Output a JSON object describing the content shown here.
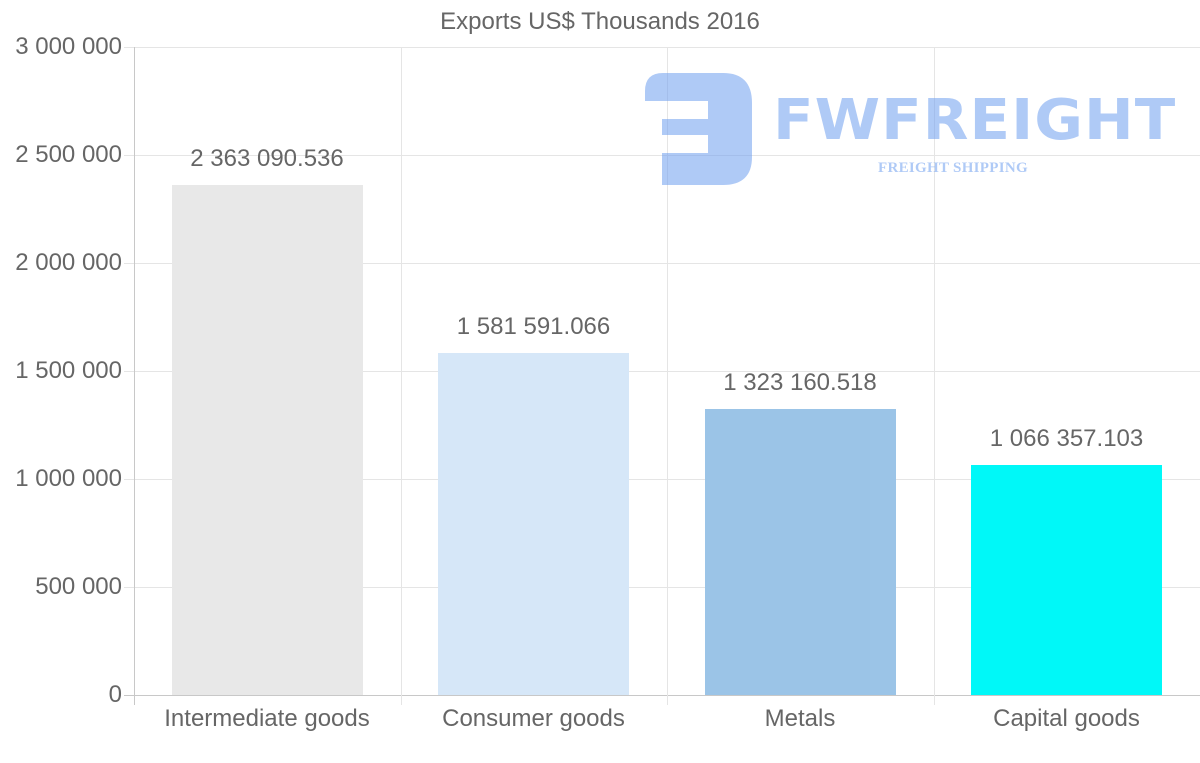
{
  "chart_data": {
    "type": "bar",
    "title": "Exports US$ Thousands 2016",
    "xlabel": "",
    "ylabel": "",
    "categories": [
      "Intermediate goods",
      "Consumer goods",
      "Metals",
      "Capital goods"
    ],
    "values": [
      2363090.536,
      1581591.066,
      1323160.518,
      1066357.103
    ],
    "value_labels": [
      "2 363 090.536",
      "1 581 591.066",
      "1 323 160.518",
      "1 066 357.103"
    ],
    "colors": [
      "#e8e8e8",
      "#d6e7f8",
      "#9bc4e7",
      "#00f8f8"
    ],
    "ylim": [
      0,
      3000000
    ],
    "yticks": [
      0,
      500000,
      1000000,
      1500000,
      2000000,
      2500000,
      3000000
    ],
    "ytick_labels": [
      "0",
      "500 000",
      "1 000 000",
      "1 500 000",
      "2 000 000",
      "2 500 000",
      "3 000 000"
    ],
    "grid": true,
    "legend": "none",
    "data_labels": "above bars"
  },
  "watermark": {
    "brand": "FWFREIGHT",
    "tagline": "FREIGHT SHIPPING",
    "color": "#6f9ff0",
    "icon": "fwfreight-logo-icon"
  }
}
